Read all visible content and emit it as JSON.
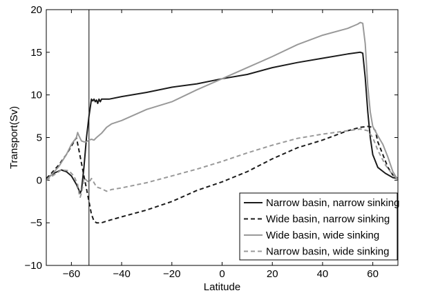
{
  "chart_data": {
    "type": "line",
    "title": "",
    "xlabel": "Latitude",
    "ylabel": "Transport(Sv)",
    "xlim": [
      -70,
      70
    ],
    "ylim": [
      -10,
      20
    ],
    "xticks": [
      -60,
      -40,
      -20,
      0,
      20,
      40,
      60
    ],
    "yticks": [
      -10,
      -5,
      0,
      5,
      10,
      15,
      20
    ],
    "xtick_labels": [
      "−60",
      "−40",
      "−20",
      "0",
      "20",
      "40",
      "60"
    ],
    "ytick_labels": [
      "−10",
      "−5",
      "0",
      "5",
      "10",
      "15",
      "20"
    ],
    "grid": false,
    "legend_position": "lower-right",
    "reference_line_x": -53,
    "series": [
      {
        "name": "Narrow basin, narrow sinking",
        "color": "#1a1a1a",
        "dash": "solid",
        "x": [
          -70,
          -67,
          -64,
          -62,
          -60,
          -58,
          -56.5,
          -56,
          -55,
          -54,
          -53,
          -52,
          -51.5,
          -51,
          -50.5,
          -50,
          -49.5,
          -49,
          -48.5,
          -48,
          -47,
          -45,
          -40,
          -30,
          -20,
          -10,
          0,
          10,
          20,
          30,
          40,
          50,
          55,
          56,
          57,
          58,
          59,
          60,
          62,
          65,
          68,
          70
        ],
        "y": [
          0.2,
          0.8,
          1.2,
          1.0,
          0.5,
          -0.5,
          -1.5,
          -1.2,
          1.5,
          5.0,
          7.5,
          9.5,
          9.3,
          9.5,
          9.2,
          9.4,
          9.0,
          9.5,
          9.2,
          9.5,
          9.5,
          9.5,
          9.8,
          10.3,
          10.9,
          11.3,
          11.9,
          12.4,
          13.2,
          13.8,
          14.3,
          14.8,
          15.0,
          14.9,
          12.0,
          8.0,
          5.0,
          3.0,
          1.5,
          0.8,
          0.3,
          0.2
        ]
      },
      {
        "name": "Wide basin, narrow sinking",
        "color": "#1a1a1a",
        "dash": "dashed",
        "x": [
          -70,
          -68,
          -65,
          -62,
          -60,
          -58,
          -57,
          -56,
          -55,
          -54,
          -53,
          -52,
          -51,
          -50,
          -48,
          -46,
          -40,
          -30,
          -20,
          -10,
          0,
          10,
          20,
          30,
          40,
          50,
          55,
          58,
          60,
          61,
          62,
          64,
          66,
          68,
          70
        ],
        "y": [
          0.2,
          0.8,
          1.8,
          3.0,
          4.0,
          5.0,
          3.5,
          2.0,
          0.5,
          -1.0,
          -2.5,
          -4.0,
          -4.8,
          -5.0,
          -5.0,
          -4.8,
          -4.3,
          -3.5,
          -2.5,
          -1.2,
          -0.2,
          1.0,
          2.5,
          3.8,
          4.7,
          5.8,
          6.2,
          6.3,
          6.2,
          5.8,
          4.5,
          3.0,
          1.5,
          0.6,
          0.2
        ]
      },
      {
        "name": "Wide basin, wide sinking",
        "color": "#999999",
        "dash": "solid",
        "x": [
          -70,
          -68,
          -65,
          -62,
          -60,
          -58,
          -57.5,
          -57,
          -56,
          -55,
          -54,
          -53,
          -52,
          -51,
          -50,
          -48,
          -46,
          -44,
          -40,
          -30,
          -20,
          -10,
          0,
          10,
          20,
          30,
          40,
          50,
          54,
          55,
          56,
          57,
          58,
          59,
          60,
          62,
          64,
          66,
          68,
          70
        ],
        "y": [
          0.0,
          0.6,
          1.6,
          3.0,
          4.2,
          5.0,
          5.6,
          5.2,
          4.6,
          4.5,
          4.5,
          4.7,
          4.8,
          4.7,
          5.0,
          5.5,
          6.2,
          6.6,
          7.0,
          8.3,
          9.2,
          10.6,
          11.9,
          13.2,
          14.5,
          15.9,
          17.0,
          17.8,
          18.3,
          18.5,
          18.4,
          16.0,
          11.0,
          8.0,
          6.3,
          5.2,
          4.2,
          2.7,
          1.0,
          0.0
        ]
      },
      {
        "name": "Narrow basin, wide sinking",
        "color": "#999999",
        "dash": "dashed",
        "x": [
          -70,
          -67,
          -64,
          -61,
          -59,
          -57.5,
          -57,
          -56.5,
          -56,
          -55.5,
          -55,
          -54,
          -53,
          -52,
          -51,
          -50,
          -48,
          -46,
          -44,
          -40,
          -30,
          -20,
          -10,
          0,
          10,
          20,
          30,
          40,
          50,
          55,
          58,
          60,
          62,
          65,
          68,
          70
        ],
        "y": [
          0.0,
          0.6,
          1.2,
          1.1,
          0.5,
          -0.5,
          -1.5,
          -2.0,
          -1.5,
          -0.8,
          0.2,
          0.0,
          -0.3,
          0.2,
          -0.3,
          -0.8,
          -1.0,
          -1.3,
          -1.1,
          -0.9,
          -0.3,
          0.5,
          1.3,
          2.2,
          3.2,
          4.1,
          4.9,
          5.4,
          5.8,
          6.0,
          5.8,
          5.0,
          3.5,
          1.8,
          0.6,
          0.1
        ]
      }
    ]
  }
}
